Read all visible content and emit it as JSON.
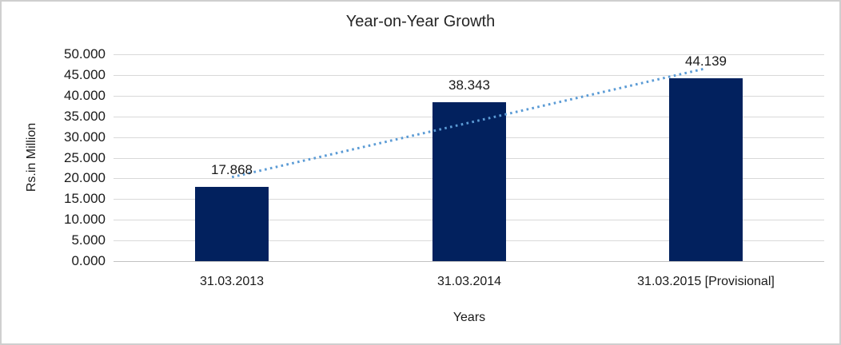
{
  "chart_data": {
    "type": "bar",
    "title": "Year-on-Year Growth",
    "xlabel": "Years",
    "ylabel": "Rs.in Million",
    "categories": [
      "31.03.2013",
      "31.03.2014",
      "31.03.2015 [Provisional]"
    ],
    "values": [
      17.868,
      38.343,
      44.139
    ],
    "data_labels": [
      "17.868",
      "38.343",
      "44.139"
    ],
    "y_ticks": [
      "0.000",
      "5.000",
      "10.000",
      "15.000",
      "20.000",
      "25.000",
      "30.000",
      "35.000",
      "40.000",
      "45.000",
      "50.000"
    ],
    "ylim": [
      0,
      50
    ],
    "y_step": 5,
    "grid": true,
    "legend": "none",
    "bar_color": "#02215E",
    "gridline_color": "#D9D9D9",
    "axis_line_color": "#C2C2C2",
    "text_color": "#1A1A1A",
    "trendline": {
      "type": "linear",
      "style": "dotted",
      "color": "#5B9BD5"
    }
  }
}
